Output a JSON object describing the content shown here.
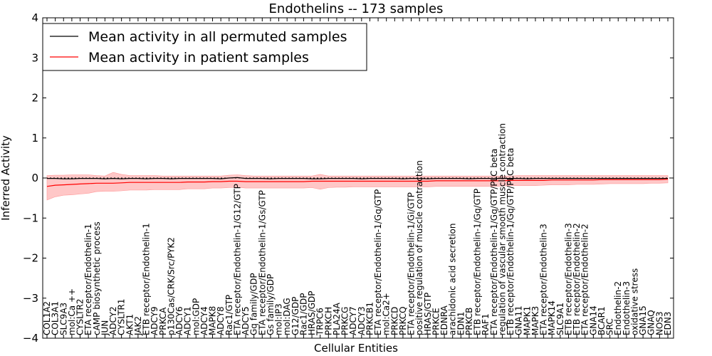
{
  "chart_data": {
    "type": "line",
    "title": "Endothelins -- 173 samples",
    "xlabel": "Cellular Entities",
    "ylabel": "Inferred Activity",
    "ylim": [
      -4,
      4
    ],
    "yticks": [
      -4,
      -3,
      -2,
      -1,
      0,
      1,
      2,
      3,
      4
    ],
    "legend_position": "top-left",
    "colors": {
      "permuted": "#000000",
      "patient": "#ff0000",
      "band": "#ff9999"
    },
    "categories": [
      "COL1A2",
      "COL3A1",
      "SLC9A3",
      "mol:Ca ++",
      "CYSLTR2",
      "ETA receptor/Endothelin-1",
      "cAMP biosynthetic process",
      "JUN",
      "ADCY2",
      "CYSLTR1",
      "AKT1",
      "JAK2",
      "ETB receptor/Endothelin-1",
      "ADCY9",
      "PRKCA",
      "p130Cas/CRK/Src/PYK2",
      "ADCY6",
      "ADCY1",
      "mol:GDP",
      "ADCY4",
      "MAPK8",
      "ADCY8",
      "Rac1/GTP",
      "ETA receptor/Endothelin-1/G12/GTP",
      "ADCY5",
      "Gq family/GDP",
      "ETA receptor/Endothelin-1/Gs/GTP",
      "Gs family/GDP",
      "mol:IP3",
      "mol:DAG",
      "G12/GDP",
      "Rac1/GDP",
      "HRAS/GDP",
      "TRPC6",
      "PRKCH",
      "PLA24A",
      "PRKCG",
      "ADCY7",
      "ADCY3",
      "PRKCB1",
      "ETA receptor/Endothelin-1/Gq/GTP",
      "mol:Ca2+",
      "PRKCD",
      "PRKCQ",
      "ETA receptor/Endothelin-1/Gi/GTP",
      "positive regulation of muscle contraction",
      "HRAS/GTP",
      "PRKCE",
      "EDNRA",
      "arachidonic acid secretion",
      "EDN1",
      "PRKCB",
      "ETB receptor/Endothelin-1/Gq/GTP",
      "RAF1",
      "ETA receptor/Endothelin-1/Gq/GTP/PLC beta",
      "regulation of vascular smooth muscle contraction",
      "ETB receptor/Endothelin-1/Gq/GTP/PLC beta",
      "GNA11",
      "MAPK1",
      "MAPK3",
      "ETA receptor/Endothelin-3",
      "MAPK14",
      "SLC9A1",
      "ETB receptor/Endothelin-3",
      "ETB receptor/Endothelin-2",
      "ETA receptor/Endothelin-2",
      "GNA14",
      "BCAR1",
      "SRC",
      "Endothelin-2",
      "Endothelin-3",
      "oxidative stress",
      "GNA15",
      "GNAQ",
      "NOS3",
      "EDN3"
    ],
    "series": [
      {
        "name": "Mean activity in all permuted samples",
        "color": "#000000",
        "values": [
          -0.01,
          -0.01,
          -0.02,
          -0.02,
          -0.01,
          -0.01,
          -0.01,
          -0.02,
          -0.01,
          -0.02,
          -0.01,
          -0.01,
          -0.02,
          -0.01,
          -0.01,
          -0.02,
          -0.01,
          -0.01,
          -0.01,
          -0.01,
          -0.01,
          -0.02,
          0.0,
          0.01,
          -0.01,
          -0.01,
          -0.01,
          -0.02,
          -0.01,
          -0.01,
          -0.01,
          -0.01,
          -0.02,
          -0.02,
          -0.01,
          -0.01,
          -0.01,
          -0.01,
          -0.02,
          -0.01,
          -0.01,
          -0.01,
          -0.01,
          -0.02,
          -0.01,
          -0.01,
          -0.02,
          -0.01,
          -0.01,
          -0.01,
          -0.01,
          -0.02,
          -0.01,
          -0.01,
          -0.01,
          -0.01,
          -0.01,
          -0.01,
          -0.02,
          -0.01,
          -0.01,
          -0.01,
          -0.01,
          -0.01,
          -0.01,
          -0.01,
          -0.01,
          -0.01,
          -0.01,
          -0.01,
          -0.01,
          -0.01,
          -0.01,
          -0.01,
          -0.01,
          -0.01
        ]
      },
      {
        "name": "Mean activity in patient samples",
        "color": "#ff0000",
        "values": [
          -0.21,
          -0.18,
          -0.17,
          -0.16,
          -0.15,
          -0.14,
          -0.13,
          -0.13,
          -0.13,
          -0.12,
          -0.11,
          -0.11,
          -0.11,
          -0.11,
          -0.11,
          -0.11,
          -0.11,
          -0.1,
          -0.1,
          -0.1,
          -0.09,
          -0.09,
          -0.08,
          -0.08,
          -0.09,
          -0.09,
          -0.09,
          -0.09,
          -0.09,
          -0.09,
          -0.09,
          -0.09,
          -0.08,
          -0.08,
          -0.08,
          -0.08,
          -0.08,
          -0.08,
          -0.08,
          -0.08,
          -0.08,
          -0.08,
          -0.08,
          -0.08,
          -0.08,
          -0.08,
          -0.08,
          -0.07,
          -0.07,
          -0.07,
          -0.07,
          -0.07,
          -0.07,
          -0.07,
          -0.07,
          -0.07,
          -0.06,
          -0.06,
          -0.06,
          -0.06,
          -0.06,
          -0.05,
          -0.05,
          -0.05,
          -0.05,
          -0.05,
          -0.05,
          -0.04,
          -0.04,
          -0.04,
          -0.04,
          -0.04,
          -0.04,
          -0.04,
          -0.04,
          -0.03
        ],
        "band_lower": [
          -0.55,
          -0.47,
          -0.43,
          -0.42,
          -0.4,
          -0.38,
          -0.34,
          -0.33,
          -0.33,
          -0.32,
          -0.3,
          -0.3,
          -0.3,
          -0.29,
          -0.29,
          -0.29,
          -0.29,
          -0.27,
          -0.27,
          -0.27,
          -0.25,
          -0.25,
          -0.24,
          -0.23,
          -0.25,
          -0.25,
          -0.25,
          -0.25,
          -0.25,
          -0.25,
          -0.25,
          -0.25,
          -0.24,
          -0.28,
          -0.24,
          -0.23,
          -0.23,
          -0.22,
          -0.22,
          -0.22,
          -0.22,
          -0.22,
          -0.22,
          -0.22,
          -0.22,
          -0.22,
          -0.22,
          -0.21,
          -0.21,
          -0.21,
          -0.21,
          -0.21,
          -0.21,
          -0.21,
          -0.21,
          -0.2,
          -0.19,
          -0.19,
          -0.19,
          -0.19,
          -0.18,
          -0.17,
          -0.17,
          -0.17,
          -0.16,
          -0.16,
          -0.16,
          -0.15,
          -0.14,
          -0.14,
          -0.14,
          -0.14,
          -0.14,
          -0.13,
          -0.13,
          -0.12
        ],
        "band_upper": [
          0.06,
          0.07,
          0.07,
          0.08,
          0.08,
          0.08,
          0.06,
          0.05,
          0.14,
          0.09,
          0.06,
          0.06,
          0.06,
          0.06,
          0.05,
          0.05,
          0.05,
          0.05,
          0.05,
          0.05,
          0.05,
          0.05,
          0.07,
          0.08,
          0.06,
          0.05,
          0.05,
          0.05,
          0.05,
          0.05,
          0.05,
          0.05,
          0.05,
          0.09,
          0.05,
          0.05,
          0.05,
          0.05,
          0.05,
          0.05,
          0.05,
          0.05,
          0.05,
          0.05,
          0.05,
          0.05,
          0.05,
          0.05,
          0.05,
          0.05,
          0.05,
          0.05,
          0.05,
          0.05,
          0.05,
          0.05,
          0.05,
          0.06,
          0.06,
          0.06,
          0.06,
          0.06,
          0.06,
          0.06,
          0.06,
          0.06,
          0.06,
          0.06,
          0.06,
          0.06,
          0.06,
          0.06,
          0.06,
          0.06,
          0.06,
          0.06
        ]
      }
    ]
  }
}
